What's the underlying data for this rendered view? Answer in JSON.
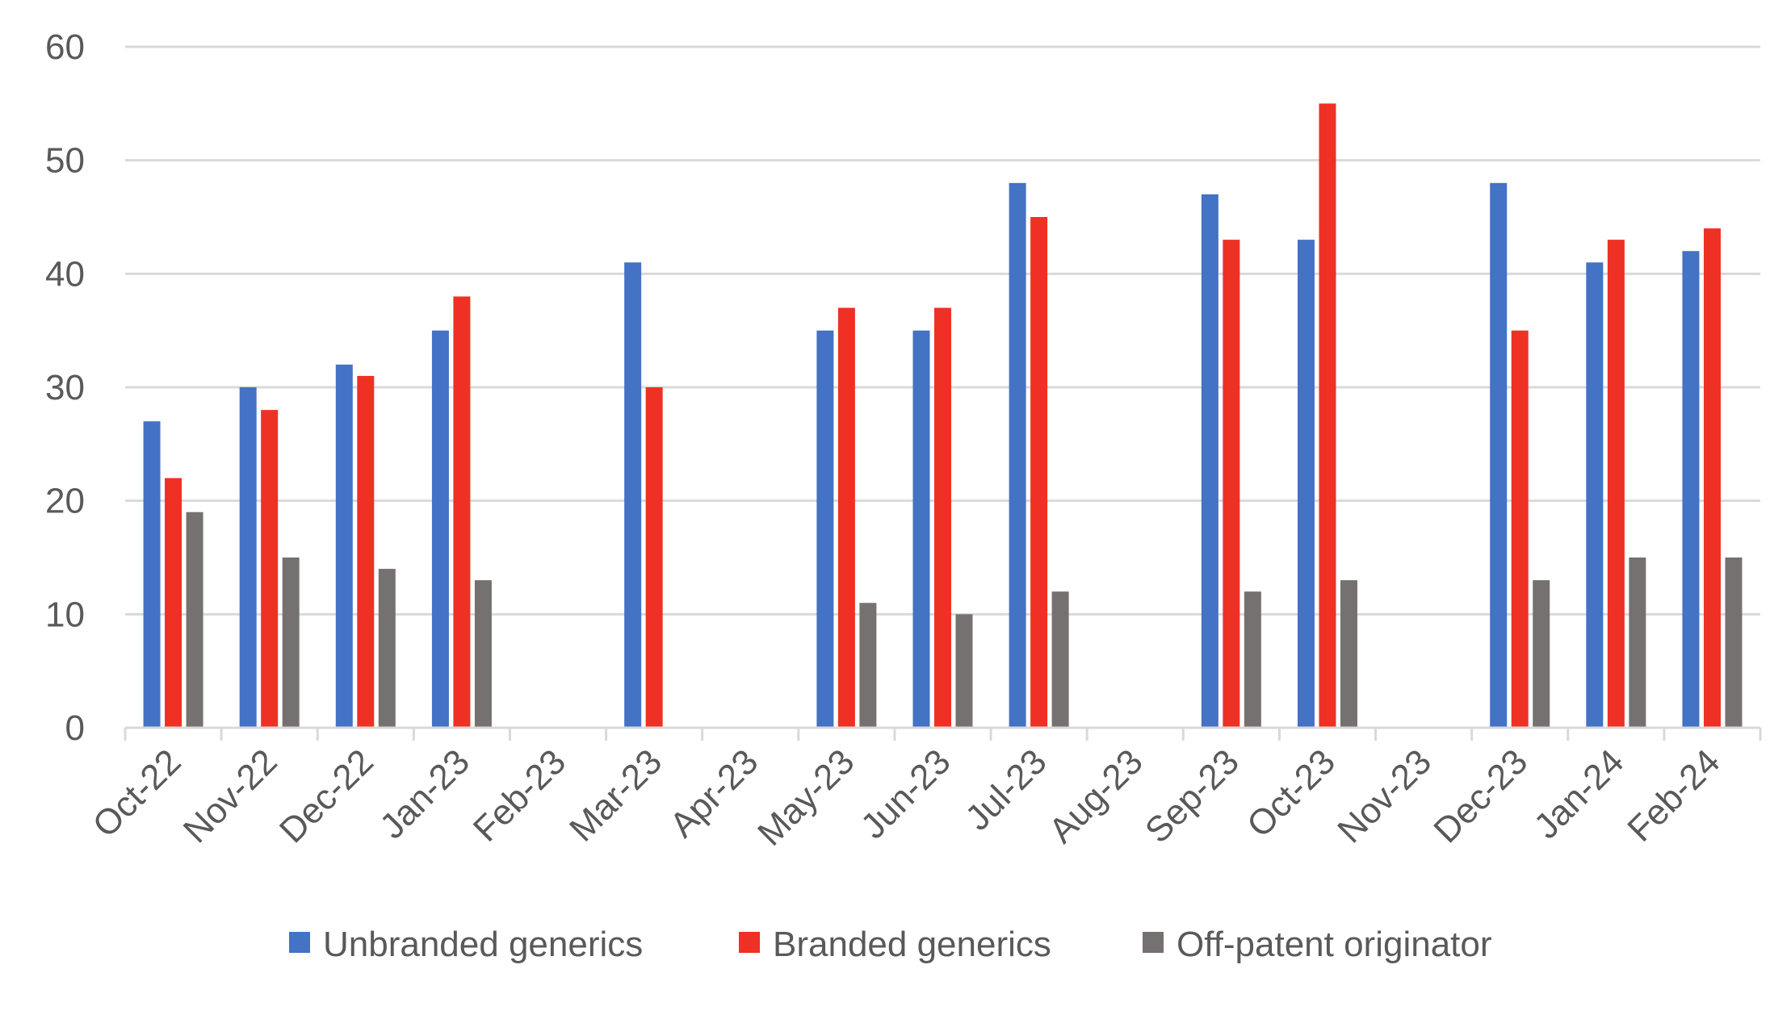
{
  "chart_data": {
    "type": "bar",
    "title": "",
    "xlabel": "",
    "ylabel": "",
    "ylim": [
      0,
      60
    ],
    "yticks": [
      0,
      10,
      20,
      30,
      40,
      50,
      60
    ],
    "grid": true,
    "legend_position": "bottom",
    "categories": [
      "Oct-22",
      "Nov-22",
      "Dec-22",
      "Jan-23",
      "Feb-23",
      "Mar-23",
      "Apr-23",
      "May-23",
      "Jun-23",
      "Jul-23",
      "Aug-23",
      "Sep-23",
      "Oct-23",
      "Nov-23",
      "Dec-23",
      "Jan-24",
      "Feb-24"
    ],
    "series": [
      {
        "name": "Unbranded generics",
        "color": "#4472C4",
        "values": [
          27,
          30,
          32,
          35,
          null,
          41,
          null,
          35,
          35,
          48,
          null,
          47,
          43,
          null,
          48,
          41,
          42
        ]
      },
      {
        "name": "Branded generics",
        "color": "#EE3124",
        "values": [
          22,
          28,
          31,
          38,
          null,
          30,
          null,
          37,
          37,
          45,
          null,
          43,
          55,
          null,
          35,
          43,
          44
        ]
      },
      {
        "name": "Off-patent originator",
        "color": "#767171",
        "values": [
          19,
          15,
          14,
          13,
          null,
          null,
          null,
          11,
          10,
          12,
          null,
          12,
          13,
          null,
          13,
          15,
          15
        ]
      }
    ]
  }
}
